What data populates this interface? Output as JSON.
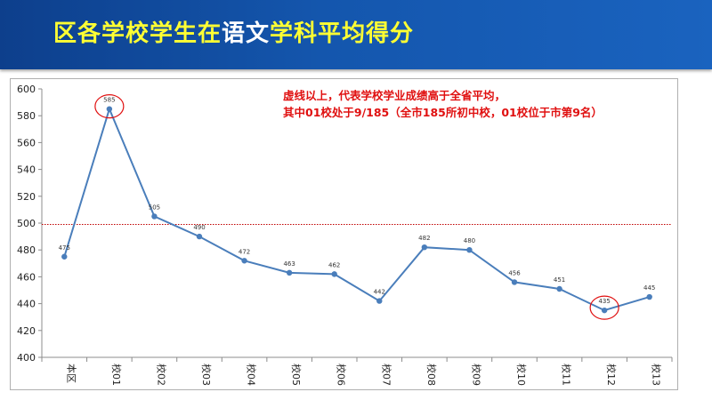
{
  "header": {
    "title_parts": [
      {
        "text": "区各学校学生在",
        "color": "yellow"
      },
      {
        "text": "语文",
        "color": "white"
      },
      {
        "text": "学科平均得分",
        "color": "yellow"
      }
    ]
  },
  "annotation": {
    "line1": "虚线以上，代表学校学业成绩高于全省平均，",
    "line2": "其中01校处于9/185（全市185所初中校，01校位于市第9名）"
  },
  "colors": {
    "header_bg": "#1456ad",
    "title_yellow": "#ffff33",
    "series_line": "#4a7ebb",
    "reference_line": "#c00000",
    "highlight_circle": "#e01010",
    "annotation_text": "#e01010"
  },
  "chart_data": {
    "type": "line",
    "title": "",
    "xlabel": "",
    "ylabel": "",
    "categories": [
      "本区",
      "校01",
      "校02",
      "校03",
      "校04",
      "校05",
      "校06",
      "校07",
      "校08",
      "校09",
      "校10",
      "校11",
      "校12",
      "校13"
    ],
    "series": [
      {
        "values": [
          475,
          585,
          505,
          490,
          472,
          463,
          462,
          442,
          482,
          480,
          456,
          451,
          435,
          445
        ]
      }
    ],
    "data_labels": [
      "475",
      "585",
      "505",
      "490",
      "472",
      "463",
      "462",
      "442",
      "482",
      "480",
      "456",
      "451",
      "435",
      "445"
    ],
    "ylim": [
      400,
      600
    ],
    "yticks": [
      "400",
      "420",
      "440",
      "460",
      "480",
      "500",
      "520",
      "540",
      "560",
      "580",
      "600"
    ],
    "reference_line": {
      "value": 499,
      "style": "dotted"
    },
    "highlighted": [
      "校01",
      "校12"
    ],
    "grid": false,
    "legend": "none"
  }
}
